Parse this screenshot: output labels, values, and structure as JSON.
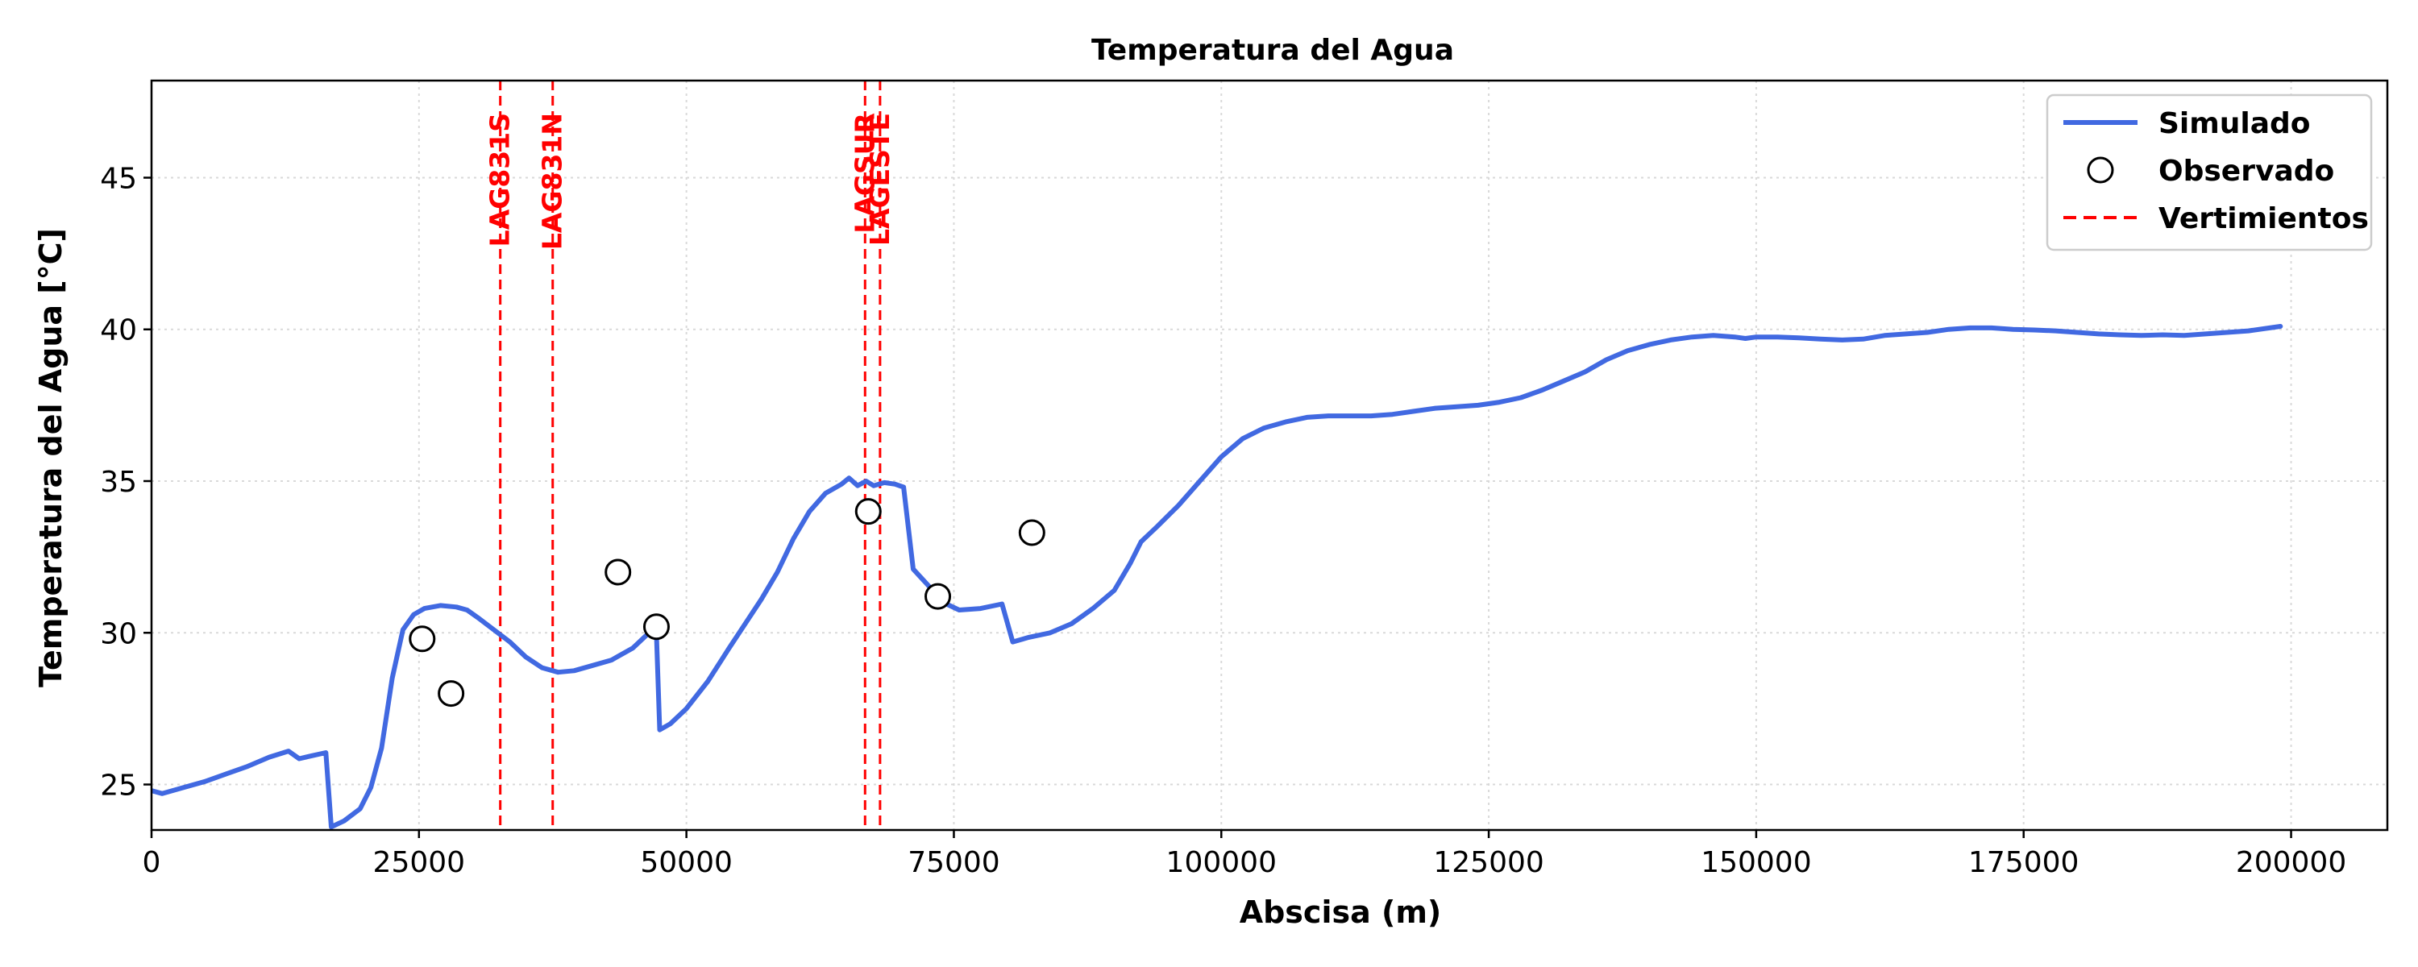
{
  "chart_data": {
    "type": "line",
    "title": "Temperatura del Agua",
    "xlabel": "Abscisa (m)",
    "ylabel": "Temperatura del Agua [°C]",
    "xlim": [
      0,
      209000
    ],
    "ylim": [
      23.5,
      48.2
    ],
    "xticks": [
      0,
      25000,
      50000,
      75000,
      100000,
      125000,
      150000,
      175000,
      200000
    ],
    "yticks": [
      25,
      30,
      35,
      40,
      45
    ],
    "grid": true,
    "legend_position": "top-right",
    "colors": {
      "simulated": "#4169E1",
      "discharge": "#FF0000",
      "observed_edge": "#000000"
    },
    "series": [
      {
        "name": "Simulado",
        "kind": "line",
        "x": [
          0,
          1000,
          3000,
          5000,
          7000,
          9000,
          11000,
          12800,
          13800,
          15000,
          16300,
          16800,
          18000,
          19500,
          20500,
          21500,
          22500,
          23500,
          24500,
          25500,
          27000,
          28500,
          29500,
          30500,
          32000,
          33500,
          35000,
          36500,
          38000,
          39500,
          41000,
          43000,
          45000,
          46500,
          47200,
          47500,
          48500,
          50000,
          52000,
          54000,
          55500,
          57000,
          58500,
          60000,
          61500,
          63000,
          64500,
          65200,
          66000,
          66800,
          67500,
          68500,
          69500,
          70300,
          71200,
          72500,
          74000,
          75500,
          77500,
          79500,
          80500,
          82000,
          84000,
          86000,
          88000,
          90000,
          91500,
          92500,
          94000,
          96000,
          98000,
          100000,
          102000,
          104000,
          106000,
          108000,
          110000,
          112000,
          114000,
          116000,
          118000,
          120000,
          122000,
          124000,
          126000,
          128000,
          130000,
          132000,
          134000,
          136000,
          138000,
          140000,
          142000,
          144000,
          146000,
          148000,
          149000,
          150000,
          152000,
          154000,
          156000,
          158000,
          160000,
          162000,
          164000,
          166000,
          168000,
          170000,
          172000,
          174000,
          176000,
          178000,
          180000,
          182000,
          184000,
          186000,
          188000,
          190000,
          192000,
          194000,
          196000,
          198000,
          199000
        ],
        "y": [
          24.8,
          24.7,
          24.9,
          25.1,
          25.35,
          25.6,
          25.9,
          26.1,
          25.85,
          25.95,
          26.05,
          23.6,
          23.8,
          24.2,
          24.9,
          26.2,
          28.5,
          30.1,
          30.6,
          30.8,
          30.9,
          30.85,
          30.75,
          30.5,
          30.1,
          29.7,
          29.2,
          28.85,
          28.7,
          28.75,
          28.9,
          29.1,
          29.5,
          30.0,
          29.9,
          26.8,
          27.0,
          27.5,
          28.4,
          29.5,
          30.3,
          31.1,
          32.0,
          33.1,
          34.0,
          34.6,
          34.9,
          35.1,
          34.85,
          35.0,
          34.85,
          34.95,
          34.9,
          34.8,
          32.1,
          31.6,
          31.0,
          30.75,
          30.8,
          30.95,
          29.7,
          29.85,
          30.0,
          30.3,
          30.8,
          31.4,
          32.3,
          33.0,
          33.5,
          34.2,
          35.0,
          35.8,
          36.4,
          36.75,
          36.95,
          37.1,
          37.15,
          37.15,
          37.15,
          37.2,
          37.3,
          37.4,
          37.45,
          37.5,
          37.6,
          37.75,
          38.0,
          38.3,
          38.6,
          39.0,
          39.3,
          39.5,
          39.65,
          39.75,
          39.8,
          39.75,
          39.7,
          39.75,
          39.75,
          39.72,
          39.68,
          39.65,
          39.68,
          39.8,
          39.85,
          39.9,
          40.0,
          40.05,
          40.05,
          40.0,
          39.98,
          39.95,
          39.9,
          39.85,
          39.82,
          39.8,
          39.82,
          39.8,
          39.85,
          39.9,
          39.95,
          40.05,
          40.1
        ]
      },
      {
        "name": "Observado",
        "kind": "scatter",
        "x": [
          25300,
          28000,
          43600,
          47200,
          67000,
          73500,
          82300
        ],
        "y": [
          29.8,
          28.0,
          32.0,
          30.2,
          34.0,
          31.2,
          33.3
        ]
      },
      {
        "name": "Vertimientos",
        "kind": "vlines",
        "x": [
          32600,
          37500,
          66700,
          68100
        ],
        "labels": [
          "LAG831S",
          "LAG831N",
          "LAGSUR",
          "LAGESTE"
        ]
      }
    ]
  }
}
